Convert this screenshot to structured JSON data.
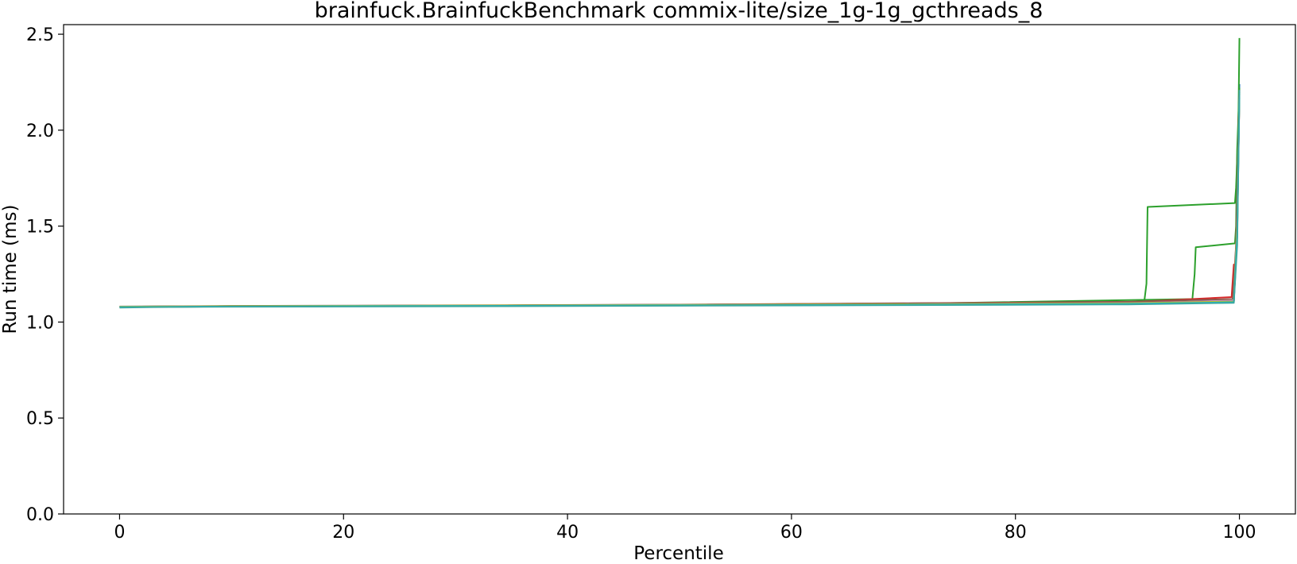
{
  "chart_data": {
    "type": "line",
    "title": "brainfuck.BrainfuckBenchmark commix-lite/size_1g-1g_gcthreads_8",
    "xlabel": "Percentile",
    "ylabel": "Run time (ms)",
    "xlim": [
      -5,
      105
    ],
    "ylim": [
      0,
      2.55
    ],
    "xticks": [
      0,
      20,
      40,
      60,
      80,
      100
    ],
    "xtick_labels": [
      "0",
      "20",
      "40",
      "60",
      "80",
      "100"
    ],
    "yticks": [
      0.0,
      0.5,
      1.0,
      1.5,
      2.0,
      2.5
    ],
    "ytick_labels": [
      "0.0",
      "0.5",
      "1.0",
      "1.5",
      "2.0",
      "2.5"
    ],
    "grid": false,
    "series": [
      {
        "color": "#1f77b4",
        "x": [
          0,
          10,
          30,
          50,
          70,
          90,
          99.5,
          99.8,
          100
        ],
        "y": [
          1.08,
          1.082,
          1.085,
          1.088,
          1.092,
          1.097,
          1.105,
          1.5,
          2.24
        ]
      },
      {
        "color": "#ff7f0e",
        "x": [
          0,
          10,
          30,
          50,
          70,
          90,
          99.5,
          99.8,
          100
        ],
        "y": [
          1.078,
          1.081,
          1.084,
          1.087,
          1.091,
          1.096,
          1.106,
          1.45,
          2.2
        ]
      },
      {
        "color": "#2ca02c",
        "x": [
          0,
          10,
          30,
          50,
          70,
          91.5,
          91.7,
          91.8,
          99.6,
          99.7,
          99.9,
          100
        ],
        "y": [
          1.08,
          1.083,
          1.086,
          1.09,
          1.097,
          1.105,
          1.2,
          1.6,
          1.62,
          1.7,
          2.0,
          2.48
        ]
      },
      {
        "color": "#2ca02c",
        "x": [
          0,
          10,
          30,
          50,
          70,
          95.8,
          96.0,
          96.1,
          99.6,
          99.7,
          99.8,
          100
        ],
        "y": [
          1.079,
          1.082,
          1.085,
          1.089,
          1.095,
          1.12,
          1.25,
          1.39,
          1.41,
          1.5,
          1.9,
          2.22
        ]
      },
      {
        "color": "#d62728",
        "x": [
          0,
          10,
          30,
          50,
          70,
          90,
          99.3,
          99.5,
          99.6,
          99.8,
          100
        ],
        "y": [
          1.079,
          1.082,
          1.086,
          1.09,
          1.097,
          1.103,
          1.13,
          1.3,
          1.2,
          1.6,
          2.21
        ]
      },
      {
        "color": "#9467bd",
        "x": [
          0,
          10,
          30,
          50,
          70,
          90,
          99.5,
          99.8,
          100
        ],
        "y": [
          1.08,
          1.083,
          1.086,
          1.089,
          1.094,
          1.1,
          1.11,
          1.55,
          2.19
        ]
      },
      {
        "color": "#8c564b",
        "x": [
          0,
          10,
          30,
          50,
          70,
          90,
          99.4,
          99.7,
          100
        ],
        "y": [
          1.081,
          1.084,
          1.087,
          1.091,
          1.098,
          1.106,
          1.12,
          1.4,
          2.2
        ]
      },
      {
        "color": "#e377c2",
        "x": [
          0,
          10,
          30,
          50,
          70,
          90,
          99.5,
          99.8,
          100
        ],
        "y": [
          1.079,
          1.082,
          1.085,
          1.088,
          1.093,
          1.099,
          1.108,
          1.5,
          2.18
        ]
      },
      {
        "color": "#7f7f7f",
        "x": [
          0,
          10,
          30,
          50,
          70,
          90,
          99.5,
          99.8,
          100
        ],
        "y": [
          1.078,
          1.081,
          1.084,
          1.087,
          1.091,
          1.096,
          1.104,
          1.45,
          2.17
        ]
      },
      {
        "color": "#bcbd22",
        "x": [
          0,
          10,
          30,
          50,
          70,
          90,
          99.5,
          99.8,
          100
        ],
        "y": [
          1.08,
          1.083,
          1.086,
          1.089,
          1.093,
          1.098,
          1.107,
          1.5,
          2.19
        ]
      },
      {
        "color": "#17becf",
        "x": [
          0,
          10,
          30,
          50,
          70,
          90,
          99.5,
          99.8,
          100
        ],
        "y": [
          1.078,
          1.081,
          1.084,
          1.087,
          1.09,
          1.095,
          1.103,
          1.45,
          2.2
        ]
      },
      {
        "color": "#3aa7a0",
        "x": [
          0,
          3,
          10,
          30,
          50,
          70,
          90,
          99.5,
          99.8,
          100
        ],
        "y": [
          1.075,
          1.078,
          1.08,
          1.082,
          1.085,
          1.088,
          1.092,
          1.1,
          1.4,
          2.21
        ]
      }
    ]
  }
}
